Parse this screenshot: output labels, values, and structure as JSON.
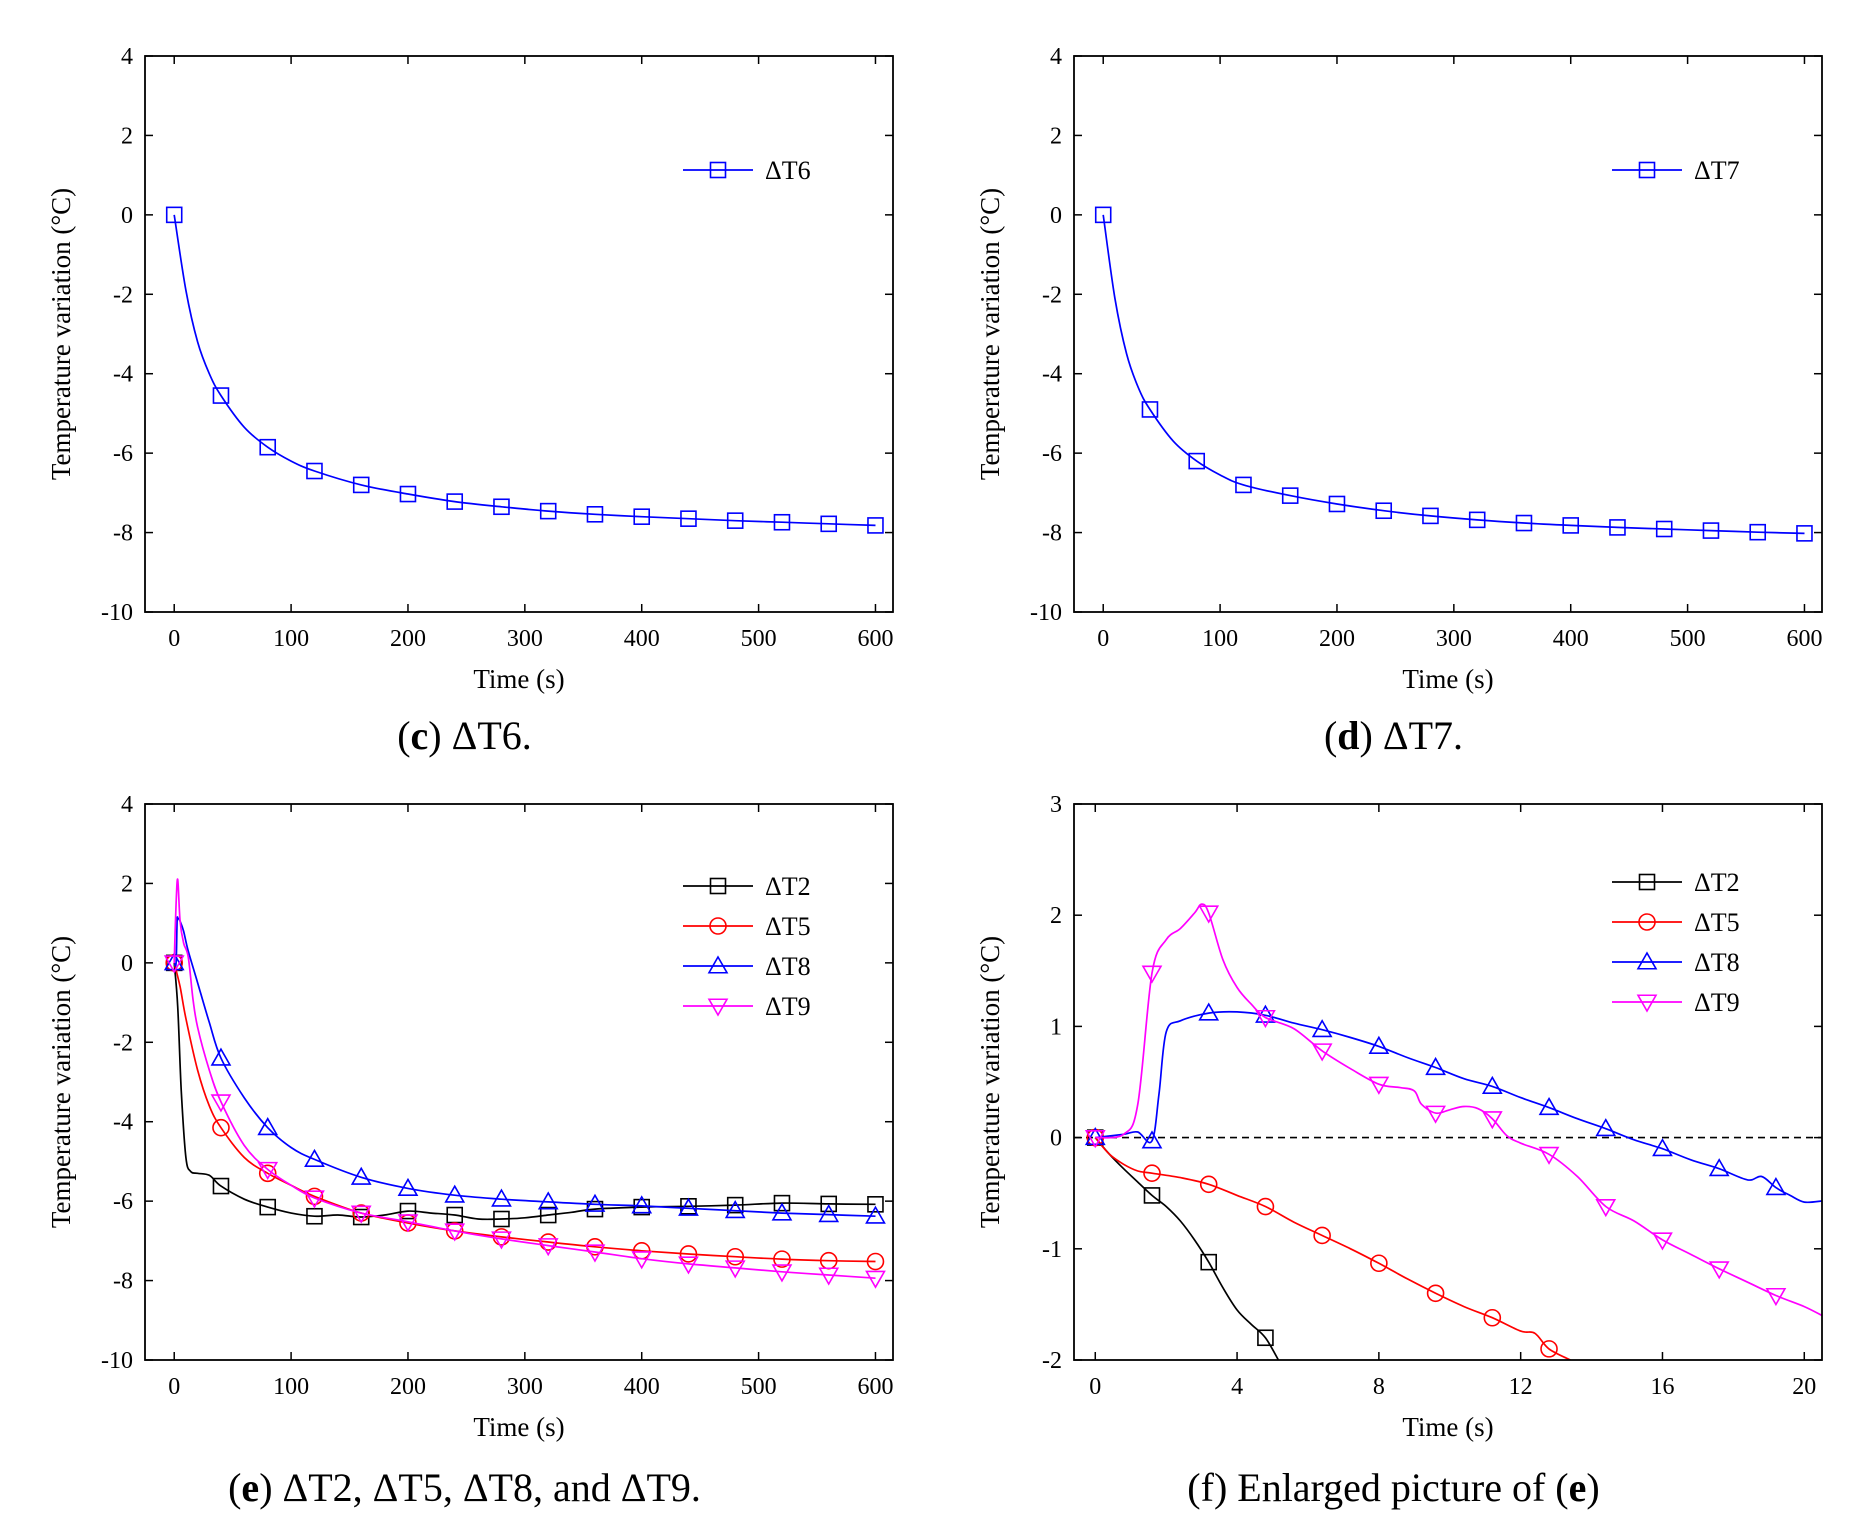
{
  "figure_colors": {
    "black": "#000000",
    "red": "#ff0000",
    "blue": "#0000ff",
    "magenta": "#ff00ff"
  },
  "captions": {
    "c": {
      "letter": "c",
      "text": "ΔT6."
    },
    "d": {
      "letter": "d",
      "text": "ΔT7."
    },
    "e": {
      "letter": "e",
      "text": "ΔT2, ΔT5, ΔT8, and ΔT9."
    },
    "f": {
      "pre": "(f) Enlarged picture of (",
      "letter": "e",
      "post": ")"
    }
  },
  "chart_data": [
    {
      "id": "c",
      "type": "line",
      "xlabel": "Time (s)",
      "ylabel": "Temperature variation (°C)",
      "xlim": [
        -25,
        615
      ],
      "ylim": [
        -10,
        4
      ],
      "xticks": [
        0,
        100,
        200,
        300,
        400,
        500,
        600
      ],
      "yticks": [
        -10,
        -8,
        -6,
        -4,
        -2,
        0,
        2,
        4
      ],
      "legend_position": "top-right",
      "series": [
        {
          "name": "ΔT6",
          "color": "#0000ff",
          "marker": "square",
          "x": [
            0,
            10,
            20,
            30,
            40,
            60,
            80,
            100,
            120,
            160,
            200,
            240,
            280,
            320,
            360,
            400,
            440,
            480,
            520,
            560,
            600
          ],
          "y": [
            0,
            -1.9,
            -3.2,
            -4.0,
            -4.55,
            -5.35,
            -5.85,
            -6.2,
            -6.45,
            -6.8,
            -7.03,
            -7.22,
            -7.35,
            -7.46,
            -7.54,
            -7.6,
            -7.65,
            -7.7,
            -7.74,
            -7.78,
            -7.82
          ],
          "marker_x": [
            0,
            40,
            80,
            120,
            160,
            200,
            240,
            280,
            320,
            360,
            400,
            440,
            480,
            520,
            560,
            600
          ]
        }
      ]
    },
    {
      "id": "d",
      "type": "line",
      "xlabel": "Time (s)",
      "ylabel": "Temperature variation (°C)",
      "xlim": [
        -25,
        615
      ],
      "ylim": [
        -10,
        4
      ],
      "xticks": [
        0,
        100,
        200,
        300,
        400,
        500,
        600
      ],
      "yticks": [
        -10,
        -8,
        -6,
        -4,
        -2,
        0,
        2,
        4
      ],
      "legend_position": "top-right",
      "series": [
        {
          "name": "ΔT7",
          "color": "#0000ff",
          "marker": "square",
          "x": [
            0,
            10,
            20,
            30,
            40,
            60,
            80,
            100,
            120,
            160,
            200,
            240,
            280,
            320,
            360,
            400,
            440,
            480,
            520,
            560,
            600
          ],
          "y": [
            0,
            -2.1,
            -3.5,
            -4.35,
            -4.9,
            -5.7,
            -6.2,
            -6.55,
            -6.8,
            -7.07,
            -7.28,
            -7.45,
            -7.58,
            -7.68,
            -7.76,
            -7.82,
            -7.87,
            -7.91,
            -7.95,
            -7.99,
            -8.02
          ],
          "marker_x": [
            0,
            40,
            80,
            120,
            160,
            200,
            240,
            280,
            320,
            360,
            400,
            440,
            480,
            520,
            560,
            600
          ]
        }
      ]
    },
    {
      "id": "e",
      "type": "line",
      "xlabel": "Time (s)",
      "ylabel": "Temperature variation (°C)",
      "xlim": [
        -25,
        615
      ],
      "ylim": [
        -10,
        4
      ],
      "xticks": [
        0,
        100,
        200,
        300,
        400,
        500,
        600
      ],
      "yticks": [
        -10,
        -8,
        -6,
        -4,
        -2,
        0,
        2,
        4
      ],
      "legend_position": "top-right",
      "series": [
        {
          "name": "ΔT2",
          "color": "#000000",
          "marker": "square",
          "x": [
            0,
            3,
            6,
            10,
            14,
            20,
            30,
            40,
            60,
            80,
            100,
            120,
            140,
            160,
            180,
            200,
            220,
            240,
            260,
            280,
            300,
            320,
            340,
            360,
            400,
            440,
            480,
            520,
            560,
            600
          ],
          "y": [
            0,
            -1.1,
            -3.2,
            -4.9,
            -5.25,
            -5.3,
            -5.35,
            -5.62,
            -5.95,
            -6.15,
            -6.3,
            -6.38,
            -6.35,
            -6.4,
            -6.35,
            -6.25,
            -6.3,
            -6.35,
            -6.45,
            -6.45,
            -6.42,
            -6.35,
            -6.28,
            -6.2,
            -6.15,
            -6.13,
            -6.1,
            -6.05,
            -6.07,
            -6.08
          ],
          "marker_x": [
            0,
            40,
            80,
            120,
            160,
            200,
            240,
            280,
            320,
            360,
            400,
            440,
            480,
            520,
            560,
            600
          ]
        },
        {
          "name": "ΔT5",
          "color": "#ff0000",
          "marker": "circle",
          "x": [
            0,
            5,
            10,
            20,
            30,
            40,
            60,
            80,
            100,
            120,
            160,
            200,
            240,
            280,
            320,
            360,
            400,
            440,
            480,
            520,
            560,
            600
          ],
          "y": [
            0,
            -0.6,
            -1.4,
            -2.7,
            -3.6,
            -4.15,
            -4.9,
            -5.3,
            -5.6,
            -5.88,
            -6.3,
            -6.55,
            -6.75,
            -6.9,
            -7.03,
            -7.15,
            -7.25,
            -7.33,
            -7.4,
            -7.46,
            -7.5,
            -7.52
          ],
          "marker_x": [
            0,
            40,
            80,
            120,
            160,
            200,
            240,
            280,
            320,
            360,
            400,
            440,
            480,
            520,
            560,
            600
          ]
        },
        {
          "name": "ΔT8",
          "color": "#0000ff",
          "marker": "triangle-up",
          "x": [
            0,
            1.6,
            2.5,
            3.2,
            5,
            8,
            12,
            20,
            30,
            40,
            60,
            80,
            100,
            120,
            160,
            200,
            240,
            280,
            320,
            360,
            400,
            440,
            480,
            520,
            560,
            600
          ],
          "y": [
            0,
            0,
            1.05,
            1.12,
            1.05,
            0.8,
            0.3,
            -0.5,
            -1.5,
            -2.4,
            -3.4,
            -4.15,
            -4.65,
            -4.95,
            -5.4,
            -5.68,
            -5.85,
            -5.95,
            -6.02,
            -6.08,
            -6.12,
            -6.18,
            -6.24,
            -6.3,
            -6.34,
            -6.38
          ],
          "marker_x": [
            0,
            40,
            80,
            120,
            160,
            200,
            240,
            280,
            320,
            360,
            400,
            440,
            480,
            520,
            560,
            600
          ]
        },
        {
          "name": "ΔT9",
          "color": "#ff00ff",
          "marker": "triangle-down",
          "x": [
            0,
            1.6,
            3,
            5,
            8,
            12,
            16,
            20,
            30,
            40,
            60,
            80,
            100,
            120,
            160,
            200,
            240,
            280,
            320,
            360,
            400,
            440,
            480,
            520,
            560,
            600
          ],
          "y": [
            0,
            1.5,
            2.1,
            1.05,
            0.5,
            0.15,
            -0.9,
            -1.62,
            -2.7,
            -3.5,
            -4.6,
            -5.2,
            -5.6,
            -5.92,
            -6.3,
            -6.52,
            -6.75,
            -6.95,
            -7.12,
            -7.28,
            -7.45,
            -7.58,
            -7.68,
            -7.78,
            -7.86,
            -7.94
          ],
          "marker_x": [
            0,
            40,
            80,
            120,
            160,
            200,
            240,
            280,
            320,
            360,
            400,
            440,
            480,
            520,
            560,
            600
          ]
        }
      ]
    },
    {
      "id": "f",
      "type": "line",
      "xlabel": "Time (s)",
      "ylabel": "Temperature variation (°C)",
      "xlim": [
        -0.6,
        20.5
      ],
      "ylim": [
        -2,
        3
      ],
      "xticks": [
        0,
        4,
        8,
        12,
        16,
        20
      ],
      "yticks": [
        -2,
        -1,
        0,
        1,
        2,
        3
      ],
      "reference_line": {
        "y": 0,
        "style": "dashed"
      },
      "legend_position": "top-right",
      "series": [
        {
          "name": "ΔT2",
          "color": "#000000",
          "marker": "square",
          "x": [
            0,
            0.4,
            0.8,
            1.2,
            1.6,
            2.0,
            2.4,
            2.8,
            3.2,
            3.6,
            4.0,
            4.4,
            4.8,
            5.2
          ],
          "y": [
            0,
            -0.15,
            -0.28,
            -0.4,
            -0.52,
            -0.62,
            -0.75,
            -0.92,
            -1.12,
            -1.35,
            -1.55,
            -1.68,
            -1.8,
            -2.02
          ],
          "marker_x": [
            0,
            1.6,
            3.2,
            4.8
          ]
        },
        {
          "name": "ΔT5",
          "color": "#ff0000",
          "marker": "circle",
          "x": [
            0,
            0.4,
            0.8,
            1.2,
            1.6,
            2.4,
            3.2,
            4.0,
            4.8,
            5.6,
            6.4,
            7.2,
            8.0,
            8.8,
            9.6,
            10.4,
            11.2,
            12.0,
            12.4,
            12.8,
            13.4
          ],
          "y": [
            0,
            -0.15,
            -0.24,
            -0.3,
            -0.32,
            -0.36,
            -0.42,
            -0.52,
            -0.62,
            -0.76,
            -0.88,
            -1.0,
            -1.13,
            -1.27,
            -1.4,
            -1.52,
            -1.62,
            -1.74,
            -1.76,
            -1.9,
            -2.0
          ],
          "marker_x": [
            0,
            1.6,
            3.2,
            4.8,
            6.4,
            8.0,
            9.6,
            11.2,
            12.8
          ]
        },
        {
          "name": "ΔT8",
          "color": "#0000ff",
          "marker": "triangle-up",
          "x": [
            0,
            0.8,
            1.2,
            1.6,
            1.8,
            2.0,
            2.4,
            3.2,
            4.0,
            4.8,
            5.6,
            6.4,
            7.2,
            8.0,
            8.8,
            9.6,
            10.4,
            11.2,
            12.0,
            12.8,
            13.6,
            14.4,
            15.2,
            16.0,
            16.8,
            17.6,
            18.4,
            18.8,
            19.2,
            19.6,
            20.0,
            20.5
          ],
          "y": [
            0,
            0.03,
            0.05,
            -0.03,
            0.4,
            0.95,
            1.05,
            1.12,
            1.13,
            1.1,
            1.03,
            0.97,
            0.9,
            0.82,
            0.72,
            0.63,
            0.53,
            0.46,
            0.36,
            0.27,
            0.17,
            0.08,
            -0.02,
            -0.1,
            -0.2,
            -0.28,
            -0.38,
            -0.35,
            -0.45,
            -0.52,
            -0.58,
            -0.57
          ],
          "marker_x": [
            0,
            1.6,
            3.2,
            4.8,
            6.4,
            8.0,
            9.6,
            11.2,
            12.8,
            14.4,
            16.0,
            17.6,
            19.2
          ]
        },
        {
          "name": "ΔT9",
          "color": "#ff00ff",
          "marker": "triangle-down",
          "x": [
            0,
            0.8,
            1.2,
            1.6,
            2.0,
            2.4,
            2.8,
            3.0,
            3.2,
            3.6,
            4.0,
            4.4,
            4.8,
            5.6,
            6.4,
            7.2,
            8.0,
            8.6,
            9.0,
            9.2,
            9.6,
            10.0,
            10.4,
            10.8,
            11.2,
            11.6,
            12.0,
            12.8,
            13.6,
            14.4,
            15.2,
            16.0,
            16.8,
            17.6,
            18.4,
            19.2,
            20.0,
            20.5
          ],
          "y": [
            0,
            0.03,
            0.3,
            1.48,
            1.78,
            1.88,
            2.02,
            2.1,
            2.02,
            1.6,
            1.35,
            1.2,
            1.08,
            0.98,
            0.78,
            0.62,
            0.48,
            0.45,
            0.42,
            0.3,
            0.22,
            0.25,
            0.28,
            0.26,
            0.17,
            0.02,
            -0.05,
            -0.15,
            -0.35,
            -0.62,
            -0.75,
            -0.92,
            -1.05,
            -1.18,
            -1.3,
            -1.42,
            -1.52,
            -1.6
          ],
          "marker_x": [
            0,
            1.6,
            3.2,
            4.8,
            6.4,
            8.0,
            9.6,
            11.2,
            12.8,
            14.4,
            16.0,
            17.6,
            19.2
          ]
        }
      ]
    }
  ]
}
